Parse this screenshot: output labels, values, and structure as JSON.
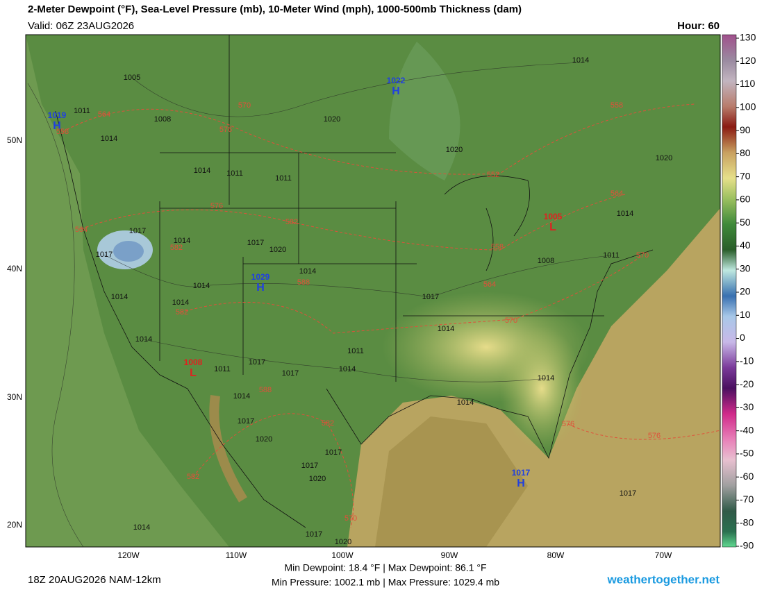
{
  "header": {
    "title": "2-Meter Dewpoint (°F), Sea-Level Pressure (mb), 10-Meter Wind (mph), 1000-500mb Thickness (dam)",
    "valid": "Valid: 06Z 23AUG2026",
    "hour": "Hour: 60"
  },
  "map": {
    "lat_labels": [
      "50N",
      "40N",
      "30N",
      "20N"
    ],
    "lon_labels": [
      "120W",
      "110W",
      "100W",
      "90W",
      "80W",
      "70W"
    ],
    "pressure_centers": [
      {
        "letter": "H",
        "value": "1019"
      },
      {
        "letter": "H",
        "value": "1022"
      },
      {
        "letter": "H",
        "value": "1029"
      },
      {
        "letter": "L",
        "value": "1008"
      },
      {
        "letter": "L",
        "value": "1005"
      },
      {
        "letter": "H",
        "value": "1017"
      }
    ],
    "isobar_labels": [
      "1005",
      "1011",
      "1008",
      "1014",
      "1014",
      "1011",
      "1011",
      "1014",
      "1020",
      "1020",
      "1017",
      "1017",
      "1014",
      "1017",
      "1020",
      "1014",
      "1014",
      "1014",
      "1014",
      "1017",
      "1008",
      "1011",
      "1014",
      "1014",
      "1014",
      "1011",
      "1014",
      "1017",
      "1017",
      "1011",
      "1014",
      "1017",
      "1020",
      "1017",
      "1017",
      "1020",
      "1014",
      "1014",
      "1017",
      "1014",
      "1017",
      "1020",
      "1020"
    ],
    "thickness_labels": [
      "564",
      "558",
      "570",
      "576",
      "576",
      "582",
      "582",
      "564",
      "588",
      "582",
      "588",
      "582",
      "582",
      "570",
      "552",
      "558",
      "564",
      "558",
      "564",
      "570",
      "570",
      "576",
      "576"
    ]
  },
  "colorbar": {
    "ticks": [
      130,
      120,
      110,
      100,
      90,
      80,
      70,
      60,
      50,
      40,
      30,
      20,
      10,
      0,
      -10,
      -20,
      -30,
      -40,
      -50,
      -60,
      -70,
      -80,
      -90
    ]
  },
  "footer": {
    "run": "18Z 20AUG2026 NAM-12km",
    "dewpoint": "Min Dewpoint:  18.4 °F | Max Dewpoint:  86.1 °F",
    "pressure": "Min Pressure: 1002.1 mb | Max Pressure: 1029.4 mb",
    "site": "weathertogether.net"
  }
}
